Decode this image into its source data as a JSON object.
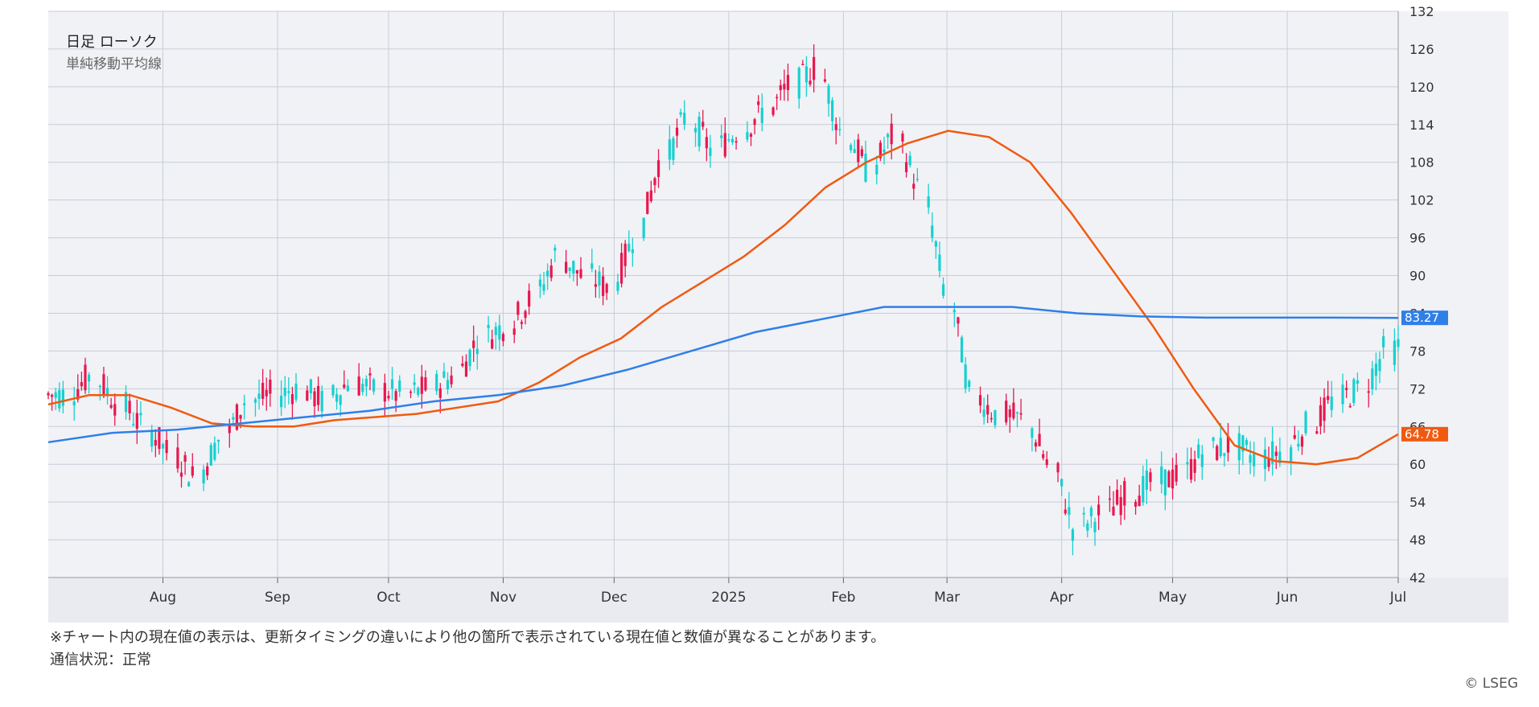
{
  "legend": {
    "title": "日足 ローソク",
    "subtitle": "単純移動平均線"
  },
  "footer": {
    "note": "※チャート内の現在値の表示は、更新タイミングの違いにより他の箇所で表示されている現在値と数値が異なることがあります。",
    "status": "通信状況：正常",
    "copyright": "© LSEG"
  },
  "colors": {
    "up": "#e8174f",
    "down": "#17d0d0",
    "ma_short": "#f05a10",
    "ma_long": "#2f7fe8",
    "plot_bg": "#f1f2f6",
    "grid": "#c8ccd8"
  },
  "chart_data": {
    "type": "candlestick",
    "y_axis": {
      "range": [
        42,
        132
      ],
      "ticks": [
        132,
        126,
        120,
        114,
        108,
        102,
        96,
        90,
        84,
        78,
        72,
        66,
        60,
        54,
        48,
        42
      ],
      "position": "right"
    },
    "x_axis": {
      "labels": [
        "Aug",
        "Sep",
        "Oct",
        "Nov",
        "Dec",
        "2025",
        "Feb",
        "Mar",
        "Apr",
        "May",
        "Jun",
        "Jul"
      ]
    },
    "grid": true,
    "series": [
      {
        "kind": "candles",
        "x": [
          "2024-07-01",
          "2024-07-08",
          "2024-07-15",
          "2024-07-22",
          "2024-07-29",
          "2024-08-05",
          "2024-08-12",
          "2024-08-19",
          "2024-08-26",
          "2024-09-02",
          "2024-09-09",
          "2024-09-16",
          "2024-09-23",
          "2024-09-30",
          "2024-10-07",
          "2024-10-14",
          "2024-10-21",
          "2024-10-28",
          "2024-11-04",
          "2024-11-11",
          "2024-11-18",
          "2024-11-25",
          "2024-12-02",
          "2024-12-09",
          "2024-12-16",
          "2024-12-23",
          "2024-12-30",
          "2025-01-06",
          "2025-01-13",
          "2025-01-20",
          "2025-01-27",
          "2025-02-03",
          "2025-02-10",
          "2025-02-17",
          "2025-02-24",
          "2025-03-03",
          "2025-03-10",
          "2025-03-17",
          "2025-03-24",
          "2025-03-31",
          "2025-04-07",
          "2025-04-14",
          "2025-04-21",
          "2025-04-28",
          "2025-05-05",
          "2025-05-12",
          "2025-05-19",
          "2025-05-26",
          "2025-06-02",
          "2025-06-09",
          "2025-06-16",
          "2025-06-23",
          "2025-06-30"
        ],
        "close": [
          71,
          74,
          70,
          66,
          62,
          58,
          64,
          70,
          71,
          72,
          70,
          73,
          72,
          71,
          72,
          74,
          80,
          82,
          86,
          93,
          90,
          88,
          96,
          108,
          115,
          110,
          113,
          116,
          120,
          123,
          113,
          107,
          112,
          104,
          88,
          71,
          68,
          67,
          60,
          50,
          52,
          55,
          57,
          58,
          62,
          63,
          61,
          62,
          66,
          70,
          72,
          78,
          79
        ]
      },
      {
        "kind": "line",
        "name": "",
        "values": [
          69.5,
          71,
          71,
          69,
          66.5,
          66,
          66,
          67,
          67.5,
          68,
          69,
          70,
          73,
          77,
          80,
          85,
          89,
          93,
          98,
          104,
          108,
          111,
          113,
          112,
          108,
          100,
          91,
          82,
          72,
          63,
          60.5,
          60,
          61,
          64.78
        ]
      },
      {
        "kind": "line",
        "name": "",
        "values": [
          63.5,
          65,
          65.5,
          66.5,
          67.5,
          68.5,
          70,
          71,
          72.5,
          75,
          78,
          81,
          83,
          85,
          85,
          85,
          84,
          83.5,
          83.3,
          83.3,
          83.3,
          83.27
        ]
      }
    ],
    "current_values": {
      "ma_short": "64.78",
      "ma_long": "83.27"
    }
  }
}
